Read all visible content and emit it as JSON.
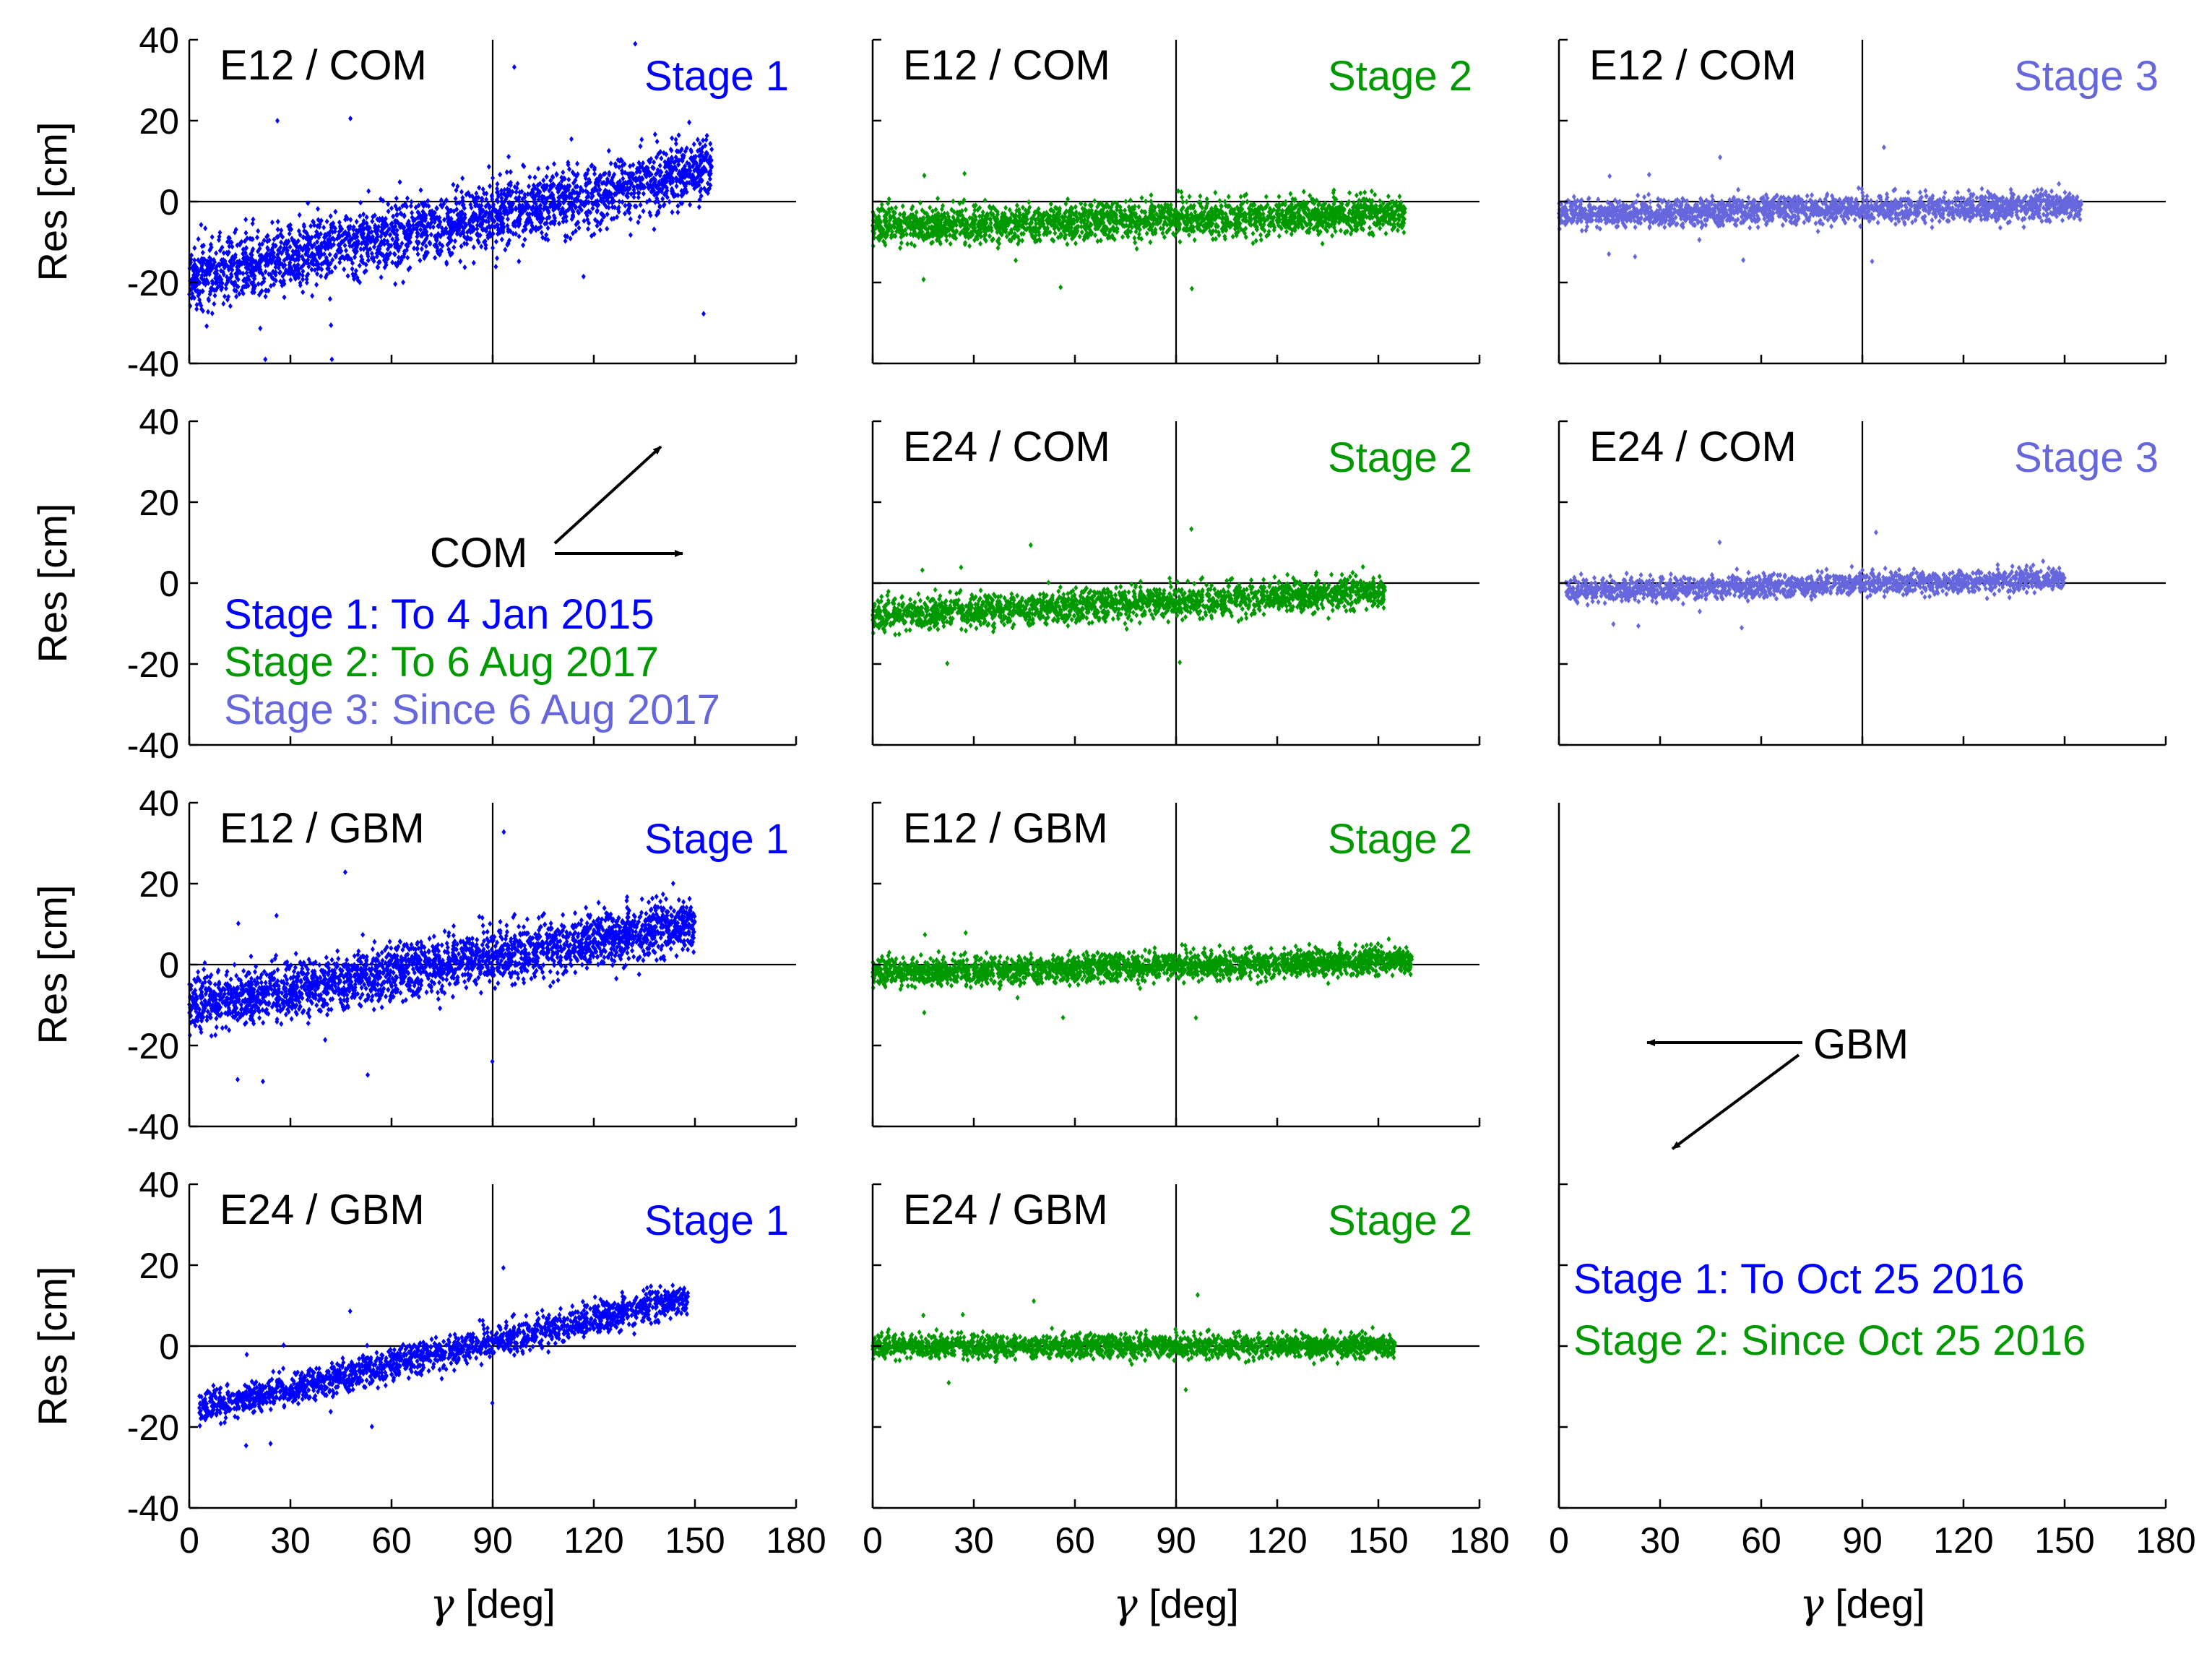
{
  "colors": {
    "stage1": "#0000ff",
    "stage2": "#009900",
    "stage3": "#6666dd"
  },
  "chart_data": {
    "type": "scatter",
    "title": "",
    "xlabel_symbol": "γ",
    "xlabel_unit": "[deg]",
    "ylabel": "Res [cm]",
    "xlim": [
      0,
      180
    ],
    "ylim": [
      -40,
      40
    ],
    "xticks": [
      "0",
      "30",
      "60",
      "90",
      "120",
      "150",
      "180"
    ],
    "yticks": [
      "40",
      "20",
      "0",
      "-20",
      "-40"
    ],
    "panels": [
      {
        "id": "r1c1",
        "label": "E12 / COM",
        "stage": "Stage 1",
        "series": "stage1",
        "trend": {
          "x0": 5,
          "y0": -18,
          "x1": 155,
          "y1": 8
        },
        "spread": 7,
        "xmin": 0,
        "xmax": 155,
        "count": 2600
      },
      {
        "id": "r1c2",
        "label": "E12 / COM",
        "stage": "Stage 2",
        "series": "stage2",
        "trend": {
          "x0": 0,
          "y0": -6,
          "x1": 160,
          "y1": -3
        },
        "spread": 4,
        "xmin": 0,
        "xmax": 158,
        "count": 2300
      },
      {
        "id": "r1c3",
        "label": "E12 / COM",
        "stage": "Stage 3",
        "series": "stage3",
        "trend": {
          "x0": 0,
          "y0": -3,
          "x1": 155,
          "y1": -1
        },
        "spread": 3,
        "xmin": 0,
        "xmax": 155,
        "count": 2000
      },
      {
        "id": "r2c2",
        "label": "E24 / COM",
        "stage": "Stage 2",
        "series": "stage2",
        "trend": {
          "x0": 0,
          "y0": -8,
          "x1": 155,
          "y1": -2
        },
        "spread": 3.5,
        "xmin": 0,
        "xmax": 152,
        "count": 2000
      },
      {
        "id": "r2c3",
        "label": "E24 / COM",
        "stage": "Stage 3",
        "series": "stage3",
        "trend": {
          "x0": 0,
          "y0": -2,
          "x1": 150,
          "y1": 1
        },
        "spread": 2.5,
        "xmin": 2,
        "xmax": 150,
        "count": 1600
      },
      {
        "id": "r3c1",
        "label": "E12 / GBM",
        "stage": "Stage 1",
        "series": "stage1",
        "trend": {
          "x0": 0,
          "y0": -10,
          "x1": 150,
          "y1": 10
        },
        "spread": 6,
        "xmin": 0,
        "xmax": 150,
        "count": 2600
      },
      {
        "id": "r3c2",
        "label": "E12 / GBM",
        "stage": "Stage 2",
        "series": "stage2",
        "trend": {
          "x0": 0,
          "y0": -2,
          "x1": 160,
          "y1": 1
        },
        "spread": 3,
        "xmin": 0,
        "xmax": 160,
        "count": 2300
      },
      {
        "id": "r4c1",
        "label": "E24 / GBM",
        "stage": "Stage 1",
        "series": "stage1",
        "trend": {
          "x0": 5,
          "y0": -15,
          "x1": 148,
          "y1": 12
        },
        "spread": 3.5,
        "xmin": 3,
        "xmax": 148,
        "count": 1800
      },
      {
        "id": "r4c2",
        "label": "E24 / GBM",
        "stage": "Stage 2",
        "series": "stage2",
        "trend": {
          "x0": 0,
          "y0": 0,
          "x1": 155,
          "y1": 0
        },
        "spread": 2.5,
        "xmin": 0,
        "xmax": 155,
        "count": 2000
      }
    ],
    "legend_com": [
      {
        "text": "Stage 1: To 4 Jan 2015",
        "series": "stage1"
      },
      {
        "text": "Stage 2: To 6 Aug 2017",
        "series": "stage2"
      },
      {
        "text": "Stage 3: Since 6 Aug 2017",
        "series": "stage3"
      }
    ],
    "legend_gbm": [
      {
        "text": "Stage 1: To Oct 25 2016",
        "series": "stage1"
      },
      {
        "text": "Stage 2: Since Oct 25 2016",
        "series": "stage2"
      }
    ],
    "annotations": {
      "com": "COM",
      "gbm": "GBM"
    }
  }
}
